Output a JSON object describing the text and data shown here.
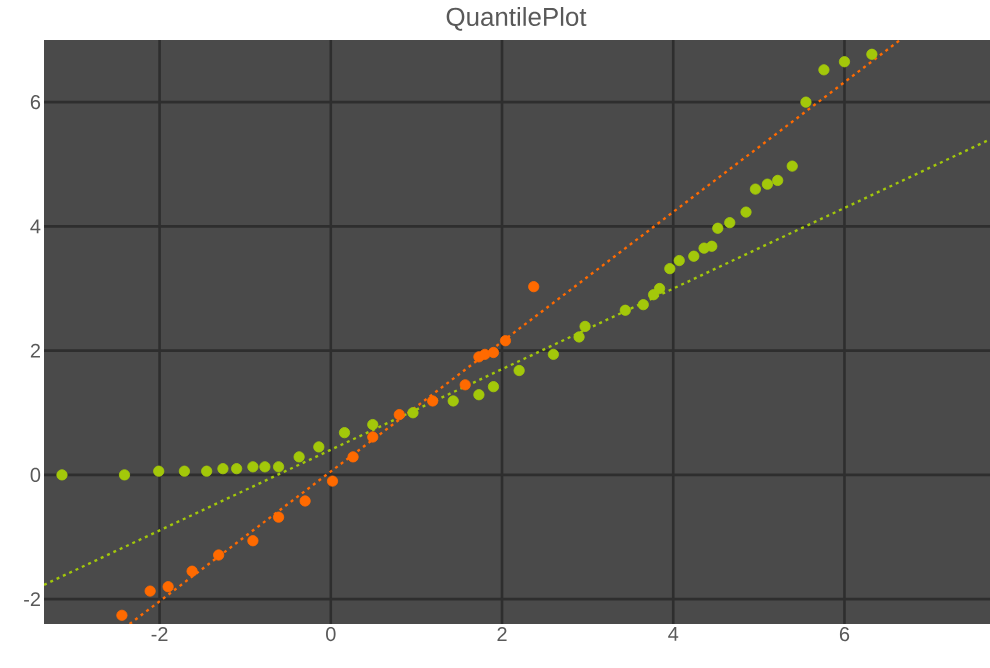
{
  "chart_data": {
    "type": "scatter",
    "title": "QuantilePlot",
    "xlim": [
      -3.35,
      7.7
    ],
    "ylim": [
      -2.4,
      7.0
    ],
    "xticks": [
      -2,
      0,
      2,
      4,
      6
    ],
    "yticks": [
      -2,
      0,
      2,
      4,
      6
    ],
    "grid": true,
    "marker": "circle",
    "series": [
      {
        "color": "#a3c80a",
        "x": [
          -3.14,
          -2.41,
          -2.01,
          -1.71,
          -1.45,
          -1.26,
          -1.1,
          -0.91,
          -0.77,
          -0.61,
          -0.37,
          -0.14,
          0.16,
          0.49,
          0.96,
          1.43,
          1.73,
          1.9,
          2.2,
          2.6,
          2.9,
          2.97,
          3.44,
          3.65,
          3.77,
          3.84,
          3.96,
          4.07,
          4.24,
          4.36,
          4.45,
          4.52,
          4.66,
          4.85,
          4.96,
          5.1,
          5.22,
          5.39,
          5.55,
          5.76,
          6.0,
          6.32
        ],
        "values": [
          0,
          0,
          0.06,
          0.06,
          0.06,
          0.1,
          0.1,
          0.13,
          0.13,
          0.13,
          0.29,
          0.45,
          0.68,
          0.81,
          1.0,
          1.19,
          1.29,
          1.42,
          1.68,
          1.94,
          2.22,
          2.39,
          2.65,
          2.74,
          2.9,
          3.0,
          3.32,
          3.45,
          3.52,
          3.65,
          3.68,
          3.97,
          4.06,
          4.23,
          4.6,
          4.68,
          4.74,
          4.97,
          6.0,
          6.52,
          6.65,
          6.77
        ]
      },
      {
        "color": "#ff6a00",
        "x": [
          -2.44,
          -2.11,
          -1.9,
          -1.62,
          -1.31,
          -0.91,
          -0.61,
          -0.3,
          0.02,
          0.26,
          0.49,
          0.8,
          1.19,
          1.57,
          1.73,
          1.8,
          1.9,
          2.04,
          2.37
        ],
        "values": [
          -2.26,
          -1.87,
          -1.8,
          -1.55,
          -1.29,
          -1.06,
          -0.68,
          -0.42,
          -0.1,
          0.29,
          0.61,
          0.97,
          1.19,
          1.45,
          1.9,
          1.94,
          1.97,
          2.16,
          3.03
        ]
      },
      {
        "type": "line",
        "color": "#a3c80a",
        "line_style": "dotted",
        "marker": "none",
        "x": [
          -3.35,
          7.7
        ],
        "values": [
          -1.77,
          5.4
        ]
      },
      {
        "type": "line",
        "color": "#ff6a00",
        "line_style": "dotted",
        "marker": "none",
        "x": [
          -2.35,
          6.65
        ],
        "values": [
          -2.4,
          7.0
        ]
      }
    ]
  }
}
